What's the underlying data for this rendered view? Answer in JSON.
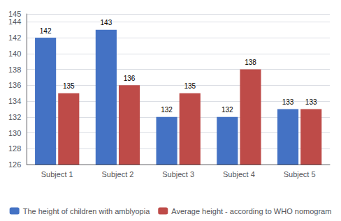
{
  "chart_data": {
    "type": "bar",
    "categories": [
      "Subject 1",
      "Subject 2",
      "Subject 3",
      "Subject 4",
      "Subject 5"
    ],
    "series": [
      {
        "name": "The height of children with amblyopia",
        "color": "#4472C4",
        "values": [
          142,
          143,
          132,
          132,
          133
        ]
      },
      {
        "name": "Average height - according to WHO nomogram",
        "color": "#BE4B48",
        "values": [
          135,
          136,
          135,
          138,
          133
        ]
      }
    ],
    "ylim": [
      126,
      145
    ],
    "yticks": [
      126,
      128,
      130,
      132,
      134,
      136,
      138,
      140,
      142,
      144
    ],
    "grid": true,
    "data_labels": true,
    "legend": "bottom"
  }
}
